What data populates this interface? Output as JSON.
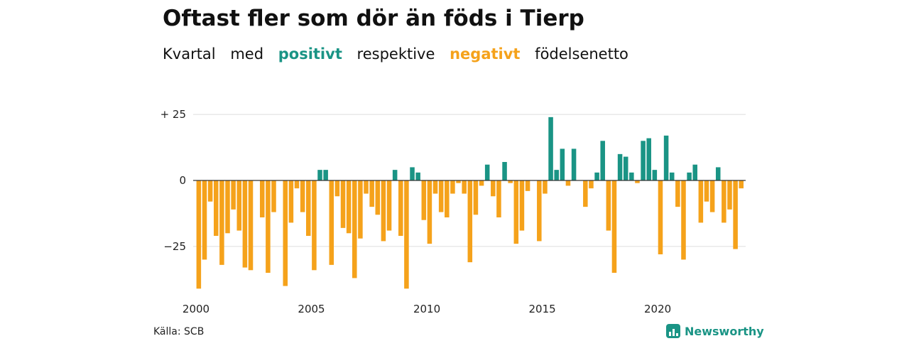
{
  "title": "Oftast fler som dör än föds i Tierp",
  "subtitle": {
    "part1": "Kvartal",
    "part2": "med",
    "positive": "positivt",
    "part3": "respektive",
    "negative": "negativt",
    "part4": "födelsenetto"
  },
  "source": "Källa: SCB",
  "brand": {
    "name": "Newsworthy",
    "icon": "newsworthy-logo-icon"
  },
  "colors": {
    "positive": "#1a9485",
    "negative": "#f5a21b",
    "brand": "#1a9485",
    "grid": "#dddddd"
  },
  "chart_data": {
    "type": "bar",
    "frequency": "quarterly",
    "start": "2000 Q1",
    "y_tick_labels": [
      "+ 25",
      "0",
      "−25"
    ],
    "y_ticks": [
      25,
      0,
      -25
    ],
    "x_tick_labels": [
      "2000",
      "2005",
      "2010",
      "2015",
      "2020"
    ],
    "ylim": [
      -42,
      28
    ],
    "grid": true,
    "values": [
      -41,
      -30,
      -8,
      -21,
      -32,
      -20,
      -11,
      -19,
      -33,
      -34,
      0,
      -14,
      -35,
      -12,
      0,
      -40,
      -16,
      -3,
      -12,
      -21,
      -34,
      4,
      4,
      -32,
      -6,
      -18,
      -20,
      -37,
      -22,
      -5,
      -10,
      -13,
      -23,
      -19,
      4,
      -21,
      -41,
      5,
      3,
      -15,
      -24,
      -5,
      -12,
      -14,
      -5,
      -1,
      -5,
      -31,
      -13,
      -2,
      6,
      -6,
      -14,
      7,
      -1,
      -24,
      -19,
      -4,
      0,
      -23,
      -5,
      24,
      4,
      12,
      -2,
      12,
      0,
      -10,
      -3,
      3,
      15,
      -19,
      -35,
      10,
      9,
      3,
      -1,
      15,
      16,
      4,
      -28,
      17,
      3,
      -10,
      -30,
      3,
      6,
      -16,
      -8,
      -12,
      5,
      -16,
      -11,
      -26,
      -3
    ]
  }
}
